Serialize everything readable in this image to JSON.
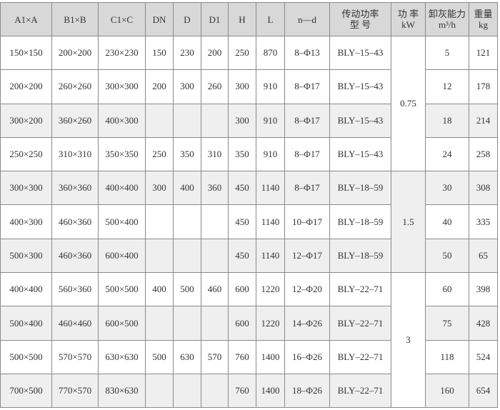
{
  "headers": [
    "A1×A",
    "B1×B",
    "C1×C",
    "DN",
    "D",
    "D1",
    "H",
    "L",
    "n—d",
    "传动功率\n型 号",
    "功 率\nkW",
    "卸灰能力\nm³/h",
    "重量\nkg"
  ],
  "rows": [
    {
      "a": "150×150",
      "b": "200×200",
      "c": "230×230",
      "dn": "150",
      "d": "230",
      "d1": "200",
      "h": "250",
      "l": "870",
      "nd": "8–Φ13",
      "model": "BLY–15–43",
      "cap": "5",
      "wt": "121"
    },
    {
      "a": "200×200",
      "b": "260×260",
      "c": "300×300",
      "dn": "200",
      "d": "300",
      "d1": "260",
      "h": "300",
      "l": "910",
      "nd": "8–Φ17",
      "model": "BLY–15–43",
      "cap": "12",
      "wt": "178"
    },
    {
      "a": "300×200",
      "b": "360×260",
      "c": "400×300",
      "dn": "",
      "d": "",
      "d1": "",
      "h": "300",
      "l": "910",
      "nd": "8–Φ17",
      "model": "BLY–15–43",
      "cap": "18",
      "wt": "214"
    },
    {
      "a": "250×250",
      "b": "310×310",
      "c": "350×350",
      "dn": "250",
      "d": "350",
      "d1": "310",
      "h": "350",
      "l": "910",
      "nd": "8–Φ17",
      "model": "BLY–15–43",
      "cap": "24",
      "wt": "258"
    },
    {
      "a": "300×300",
      "b": "360×360",
      "c": "400×400",
      "dn": "300",
      "d": "400",
      "d1": "360",
      "h": "450",
      "l": "1140",
      "nd": "8–Φ17",
      "model": "BLY–18–59",
      "cap": "30",
      "wt": "308"
    },
    {
      "a": "400×300",
      "b": "460×360",
      "c": "500×400",
      "dn": "",
      "d": "",
      "d1": "",
      "h": "450",
      "l": "1140",
      "nd": "10–Φ17",
      "model": "BLY–18–59",
      "cap": "40",
      "wt": "335"
    },
    {
      "a": "500×300",
      "b": "460×360",
      "c": "600×400",
      "dn": "",
      "d": "",
      "d1": "",
      "h": "450",
      "l": "1140",
      "nd": "12–Φ17",
      "model": "BLY–18–59",
      "cap": "50",
      "wt": "65"
    },
    {
      "a": "400×400",
      "b": "560×360",
      "c": "500×500",
      "dn": "400",
      "d": "500",
      "d1": "460",
      "h": "600",
      "l": "1220",
      "nd": "12–Φ20",
      "model": "BLY–22–71",
      "cap": "60",
      "wt": "398"
    },
    {
      "a": "500×400",
      "b": "460×460",
      "c": "600×500",
      "dn": "",
      "d": "",
      "d1": "",
      "h": "600",
      "l": "1220",
      "nd": "14–Φ26",
      "model": "BLY–22–71",
      "cap": "75",
      "wt": "428"
    },
    {
      "a": "500×500",
      "b": "570×570",
      "c": "630×630",
      "dn": "500",
      "d": "630",
      "d1": "570",
      "h": "760",
      "l": "1400",
      "nd": "16–Φ26",
      "model": "BLY–22–71",
      "cap": "118",
      "wt": "524"
    },
    {
      "a": "700×500",
      "b": "770×570",
      "c": "830×630",
      "dn": "",
      "d": "",
      "d1": "",
      "h": "760",
      "l": "1400",
      "nd": "18–Φ26",
      "model": "BLY–22–71",
      "cap": "160",
      "wt": "654"
    }
  ],
  "power_groups": [
    {
      "value": "0.75",
      "rows": 4
    },
    {
      "value": "1.5",
      "rows": 3
    },
    {
      "value": "3",
      "rows": 4
    }
  ],
  "colors": {
    "header_bg": "#d8d8d8",
    "alt_row_bg": "#efefef",
    "border": "#8a8a8a"
  }
}
